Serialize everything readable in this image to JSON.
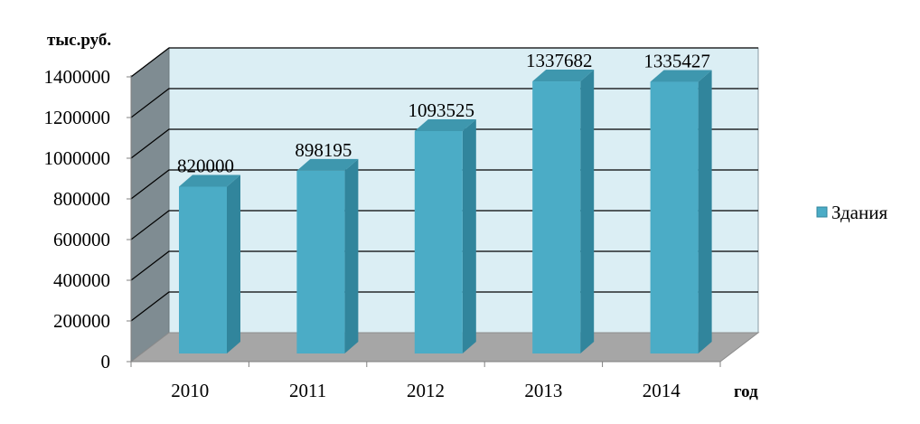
{
  "chart_data": {
    "type": "bar",
    "categories": [
      "2010",
      "2011",
      "2012",
      "2013",
      "2014"
    ],
    "series": [
      {
        "name": "Здания",
        "values": [
          820000,
          898195,
          1093525,
          1337682,
          1335427
        ]
      }
    ],
    "value_labels": [
      "820000",
      "898195",
      "1093525",
      "1337682",
      "1335427"
    ],
    "y_ticks": [
      "0",
      "200000",
      "400000",
      "600000",
      "800000",
      "1000000",
      "1200000",
      "1400000"
    ],
    "ylabel": "тыс.руб.",
    "xlabel": "год",
    "ylim": [
      0,
      1400000
    ],
    "grid": true,
    "legend_position": "right",
    "style": "3d-column",
    "colors": {
      "bar_front": "#4BACC6",
      "bar_side": "#31859C",
      "bar_top": "#3E97AE",
      "back_wall": "#DBEEF4",
      "side_wall": "#7F8C92",
      "floor": "#A6A6A6",
      "grid": "#000000"
    }
  }
}
